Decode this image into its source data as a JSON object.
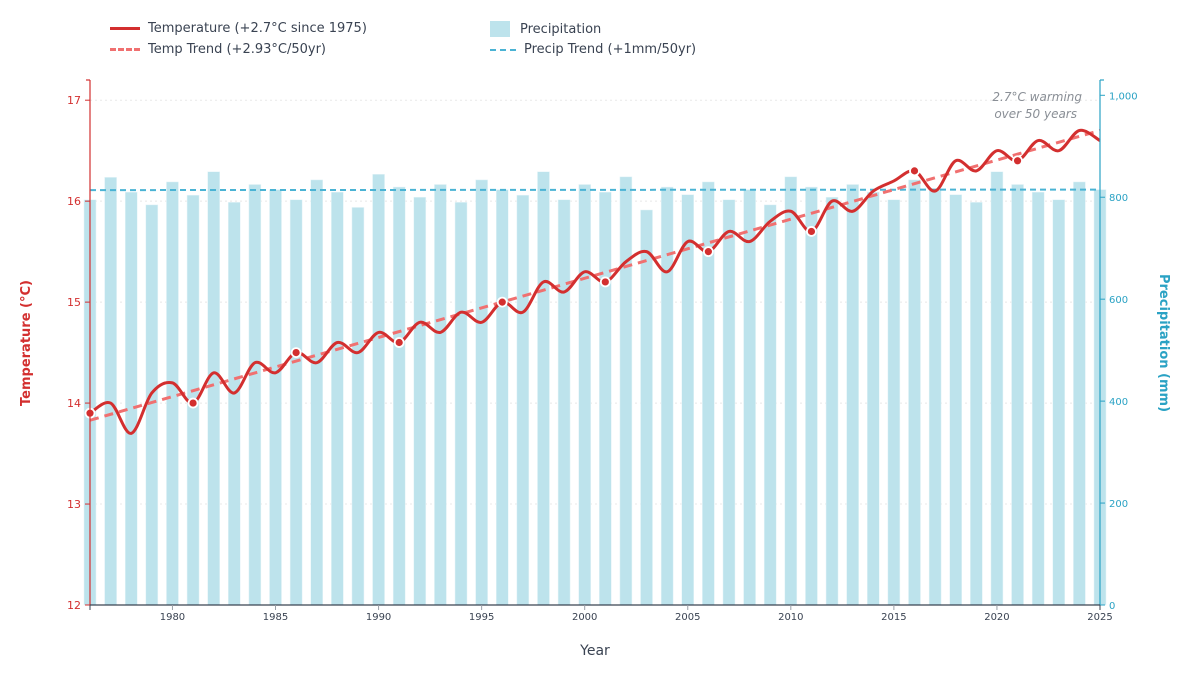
{
  "chart_data": {
    "type": "bar+line",
    "title": "",
    "xlabel": "Year",
    "ylabel_left": "Temperature (°C)",
    "ylabel_right": "Precipitation (mm)",
    "xlim": [
      1976,
      2025
    ],
    "ylim_left": [
      12,
      17.2
    ],
    "ylim_right": [
      0,
      1030
    ],
    "x_ticks": [
      1980,
      1985,
      1990,
      1995,
      2000,
      2005,
      2010,
      2015,
      2020,
      2025
    ],
    "y_left_ticks": [
      12,
      13,
      14,
      15,
      16,
      17
    ],
    "y_right_ticks": [
      0,
      200,
      400,
      600,
      800,
      1000
    ],
    "y_right_tick_labels": [
      "0",
      "200",
      "400",
      "600",
      "800",
      "1,000"
    ],
    "grid": "horizontal dotted at left-axis ticks",
    "legend_position": "top",
    "x": [
      1976,
      1977,
      1978,
      1979,
      1980,
      1981,
      1982,
      1983,
      1984,
      1985,
      1986,
      1987,
      1988,
      1989,
      1990,
      1991,
      1992,
      1993,
      1994,
      1995,
      1996,
      1997,
      1998,
      1999,
      2000,
      2001,
      2002,
      2003,
      2004,
      2005,
      2006,
      2007,
      2008,
      2009,
      2010,
      2011,
      2012,
      2013,
      2014,
      2015,
      2016,
      2017,
      2018,
      2019,
      2020,
      2021,
      2022,
      2023,
      2024,
      2025
    ],
    "series": [
      {
        "name": "Temperature (+2.7°C since 1975)",
        "kind": "line",
        "axis": "left",
        "color": "#d32f2f",
        "values": [
          13.9,
          14.0,
          13.7,
          14.1,
          14.2,
          14.0,
          14.3,
          14.1,
          14.4,
          14.3,
          14.5,
          14.4,
          14.6,
          14.5,
          14.7,
          14.6,
          14.8,
          14.7,
          14.9,
          14.8,
          15.0,
          14.9,
          15.2,
          15.1,
          15.3,
          15.2,
          15.4,
          15.5,
          15.3,
          15.6,
          15.5,
          15.7,
          15.6,
          15.8,
          15.9,
          15.7,
          16.0,
          15.9,
          16.1,
          16.2,
          16.3,
          16.1,
          16.4,
          16.3,
          16.5,
          16.4,
          16.6,
          16.5,
          16.7,
          16.6
        ],
        "marker_years": [
          1976,
          1981,
          1986,
          1991,
          1996,
          2001,
          2006,
          2011,
          2016,
          2021
        ]
      },
      {
        "name": "Temp Trend (+2.93°C/50yr)",
        "kind": "line-dashed",
        "axis": "left",
        "color": "#f07070",
        "endpoints": [
          [
            1976,
            13.83
          ],
          [
            2025,
            16.7
          ]
        ]
      },
      {
        "name": "Precipitation",
        "kind": "bar",
        "axis": "right",
        "color": "#bde3ec",
        "values": [
          795,
          839,
          810,
          785,
          830,
          804,
          850,
          790,
          825,
          815,
          795,
          834,
          810,
          780,
          845,
          820,
          800,
          825,
          790,
          834,
          815,
          804,
          850,
          795,
          825,
          810,
          840,
          775,
          820,
          805,
          830,
          795,
          815,
          785,
          840,
          820,
          800,
          825,
          810,
          795,
          834,
          815,
          805,
          790,
          850,
          825,
          810,
          795,
          830,
          815
        ]
      },
      {
        "name": "Precip Trend (+1mm/50yr)",
        "kind": "line-dashed",
        "axis": "right",
        "color": "#4ab3d4",
        "endpoints": [
          [
            1976,
            814
          ],
          [
            2025,
            815
          ]
        ]
      }
    ],
    "annotation": {
      "lines": [
        "2.7°C warming",
        "over 50 years"
      ],
      "anchor": "top-right"
    }
  },
  "legend": {
    "temp": "Temperature (+2.7°C since 1975)",
    "temp_trend": "Temp Trend (+2.93°C/50yr)",
    "precip": "Precipitation",
    "precip_trend": "Precip Trend (+1mm/50yr)"
  },
  "colors": {
    "temperature": "#d32f2f",
    "temp_trend": "#f07070",
    "precip_bar": "#bde3ec",
    "precip_trend": "#4ab3d4",
    "right_axis": "#2aa2c4",
    "x_axis": "#3a4352"
  }
}
